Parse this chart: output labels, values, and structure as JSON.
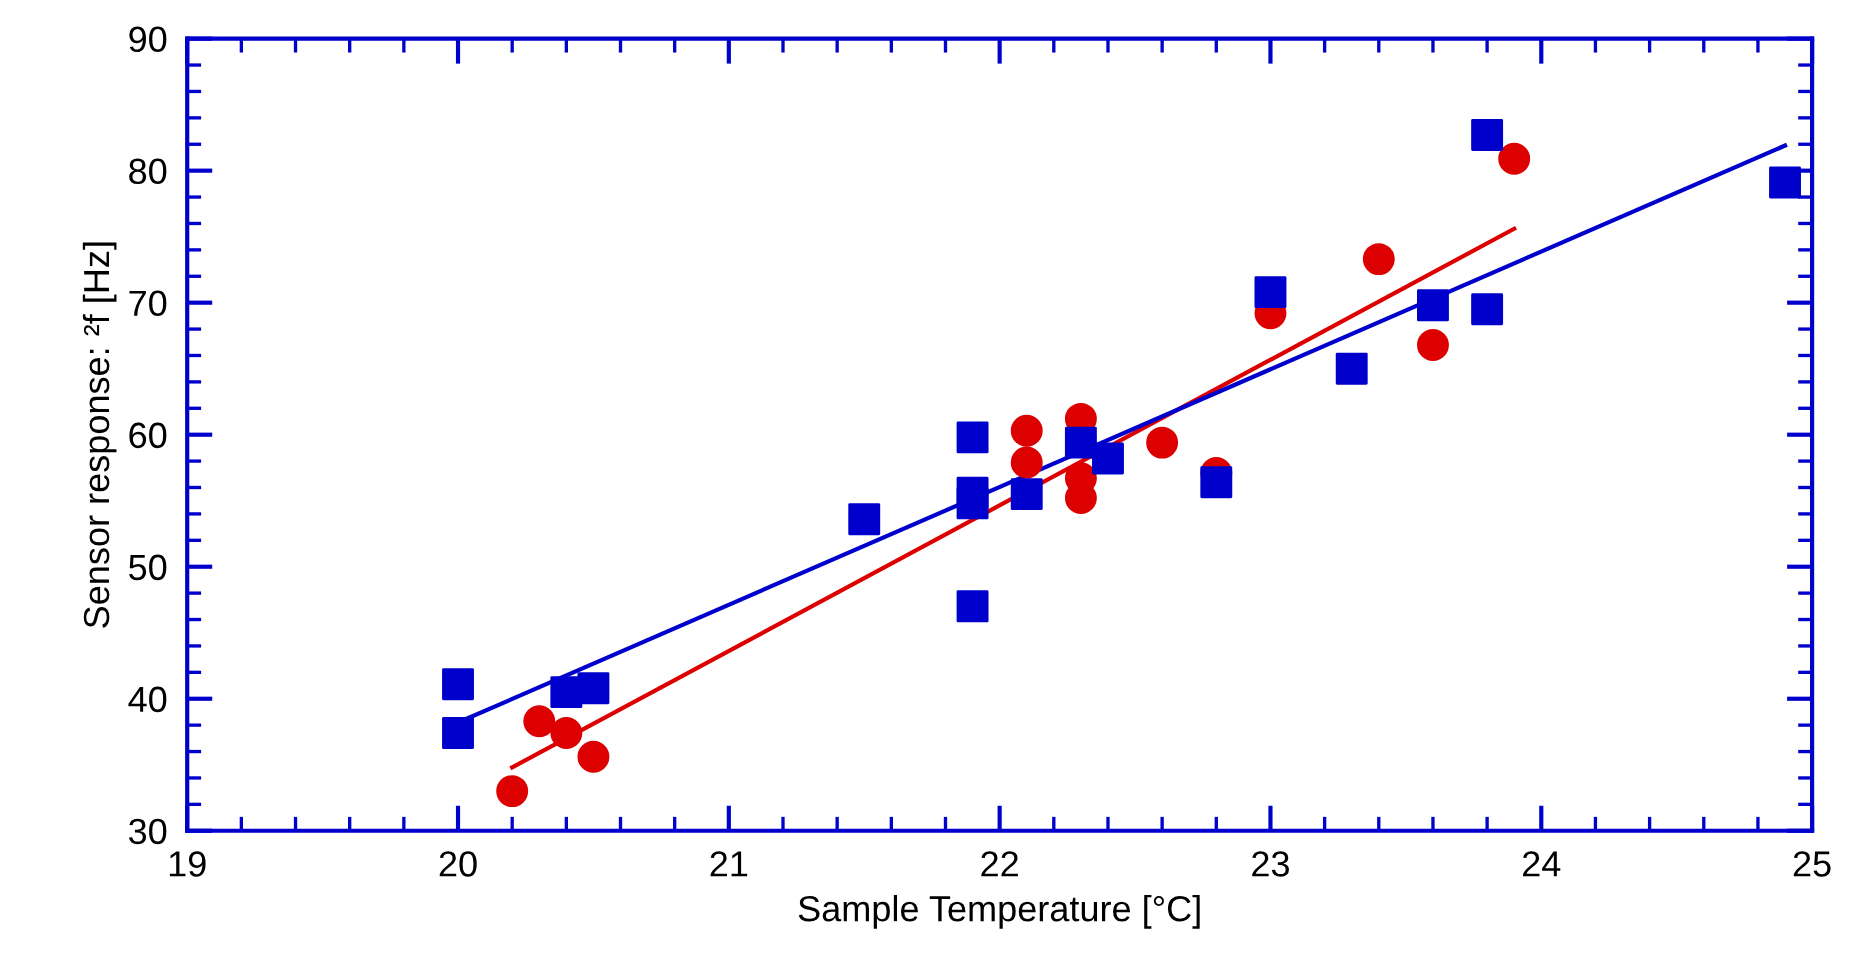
{
  "chart_data": {
    "type": "scatter",
    "xlabel": "Sample Temperature [°C]",
    "ylabel": "Sensor response: ²f [Hz]",
    "xlim": [
      19,
      25
    ],
    "xticks": [
      19,
      20,
      21,
      22,
      23,
      24,
      25
    ],
    "ylim": [
      30,
      90
    ],
    "yticks": [
      30,
      40,
      50,
      60,
      70,
      80,
      90
    ],
    "grid": false,
    "legend": false,
    "series": [
      {
        "marker": "circle",
        "color": "#dd0000",
        "x": [
          20.2,
          20.3,
          20.4,
          20.5,
          22.1,
          22.1,
          22.3,
          22.3,
          22.3,
          22.6,
          22.8,
          23.0,
          23.4,
          23.6,
          23.9
        ],
        "values": [
          33.0,
          38.3,
          37.4,
          35.6,
          60.3,
          57.9,
          61.2,
          56.7,
          55.2,
          59.4,
          57.1,
          69.2,
          73.3,
          66.8,
          80.9
        ]
      },
      {
        "marker": "square",
        "color": "#0000cc",
        "x": [
          20.0,
          20.0,
          20.4,
          20.5,
          21.5,
          21.9,
          21.9,
          21.9,
          21.9,
          22.1,
          22.3,
          22.4,
          22.8,
          23.0,
          23.3,
          23.6,
          23.8,
          23.8,
          24.9
        ],
        "values": [
          41.1,
          37.4,
          40.5,
          40.8,
          53.6,
          59.8,
          55.6,
          54.8,
          47.0,
          55.5,
          59.4,
          58.2,
          56.4,
          70.8,
          65.0,
          69.8,
          69.5,
          82.7,
          79.1
        ]
      },
      {
        "type": "line",
        "marker": "none",
        "line_style": "solid",
        "color": "#dd0000",
        "x": [
          20.2,
          23.9
        ],
        "values": [
          34.8,
          75.6
        ]
      },
      {
        "type": "line",
        "marker": "none",
        "line_style": "solid",
        "color": "#0000cc",
        "x": [
          20.0,
          24.9
        ],
        "values": [
          38.2,
          81.9
        ]
      }
    ]
  }
}
